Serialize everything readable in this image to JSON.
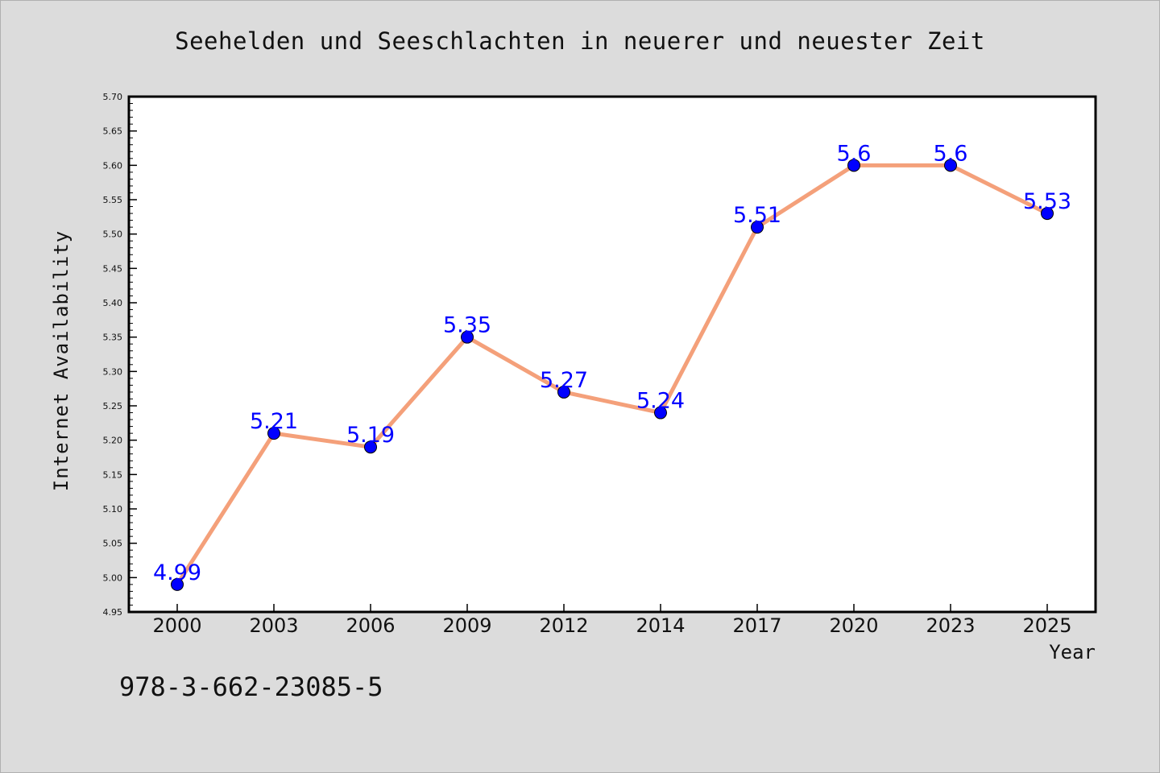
{
  "chart_data": {
    "type": "line",
    "title": "Seehelden und Seeschlachten in neuerer und neuester Zeit",
    "xlabel": "Year",
    "ylabel": "Internet Availability",
    "categories": [
      "2000",
      "2003",
      "2006",
      "2009",
      "2012",
      "2014",
      "2017",
      "2020",
      "2023",
      "2025"
    ],
    "values": [
      4.99,
      5.21,
      5.19,
      5.35,
      5.27,
      5.24,
      5.51,
      5.6,
      5.6,
      5.53
    ],
    "data_labels": [
      "4.99",
      "5.21",
      "5.19",
      "5.35",
      "5.27",
      "5.24",
      "5.51",
      "5.6",
      "5.6",
      "5.53"
    ],
    "ylim": [
      4.95,
      5.7
    ],
    "yticks": [
      "4.95",
      "5.00",
      "5.05",
      "5.10",
      "5.15",
      "5.20",
      "5.25",
      "5.30",
      "5.35",
      "5.40",
      "5.45",
      "5.50",
      "5.55",
      "5.60",
      "5.65",
      "5.70"
    ],
    "grid": false,
    "legend": "none"
  },
  "caption": "978-3-662-23085-5",
  "colors": {
    "background": "#dcdcdc",
    "plot_background": "#ffffff",
    "line": "#f4a07a",
    "marker": "#0000ff",
    "data_label": "#0000ff"
  }
}
